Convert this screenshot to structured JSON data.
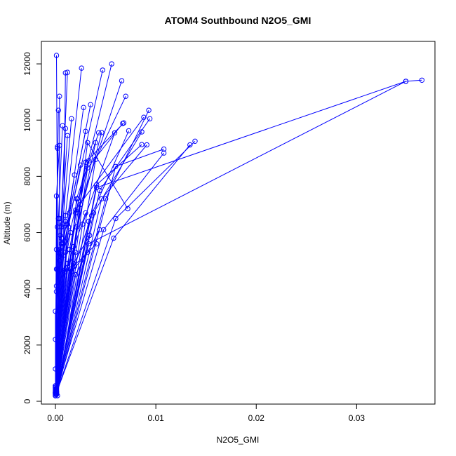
{
  "chart_data": {
    "type": "line",
    "title": "ATOM4 Southbound N2O5_GMI",
    "xlabel": "N2O5_GMI",
    "ylabel": "Altitude (m)",
    "xlim": [
      -0.0014,
      0.0378
    ],
    "ylim": [
      -100,
      12800
    ],
    "x_ticks": [
      0.0,
      0.01,
      0.02,
      0.03
    ],
    "x_tick_labels": [
      "0.00",
      "0.01",
      "0.02",
      "0.03"
    ],
    "y_ticks": [
      0,
      2000,
      4000,
      6000,
      8000,
      10000,
      12000
    ],
    "y_tick_labels": [
      "0",
      "2000",
      "4000",
      "6000",
      "8000",
      "10000",
      "12000"
    ],
    "grid": false,
    "marker": "open-circle",
    "color": "#0000ff",
    "series": [
      {
        "x": [
          0.0,
          0.0002,
          0.0001
        ],
        "y": [
          200,
          6200,
          12300
        ]
      },
      {
        "x": [
          0.0,
          0.0001,
          0.0003
        ],
        "y": [
          300,
          5400,
          10350
        ]
      },
      {
        "x": [
          0.0001,
          0.0004,
          0.0004
        ],
        "y": [
          250,
          6500,
          10850
        ]
      },
      {
        "x": [
          0.0,
          0.0005,
          0.0012
        ],
        "y": [
          400,
          5900,
          11700
        ]
      },
      {
        "x": [
          0.0,
          0.0008,
          0.001
        ],
        "y": [
          350,
          5600,
          11680
        ]
      },
      {
        "x": [
          0.0001,
          0.001,
          0.0026
        ],
        "y": [
          300,
          6600,
          11850
        ]
      },
      {
        "x": [
          0.0,
          0.0009,
          0.0047
        ],
        "y": [
          250,
          5700,
          11780
        ]
      },
      {
        "x": [
          0.0001,
          0.002,
          0.0056
        ],
        "y": [
          300,
          6700,
          12000
        ]
      },
      {
        "x": [
          0.0001,
          0.0025,
          0.0066
        ],
        "y": [
          350,
          7000,
          11400
        ]
      },
      {
        "x": [
          0.0002,
          0.004,
          0.007
        ],
        "y": [
          200,
          8600,
          10850
        ]
      },
      {
        "x": [
          0.0001,
          0.0008,
          0.0028
        ],
        "y": [
          400,
          5200,
          10450
        ]
      },
      {
        "x": [
          0.0001,
          0.0012,
          0.0035
        ],
        "y": [
          450,
          6300,
          10550
        ]
      },
      {
        "x": [
          0.0,
          0.0006,
          0.0016
        ],
        "y": [
          500,
          5800,
          10050
        ]
      },
      {
        "x": [
          0.0001,
          0.003,
          0.0068
        ],
        "y": [
          300,
          8500,
          9900
        ]
      },
      {
        "x": [
          0.0001,
          0.0032,
          0.0067
        ],
        "y": [
          250,
          8300,
          9880
        ]
      },
      {
        "x": [
          0.0001,
          0.005,
          0.0093
        ],
        "y": [
          350,
          7200,
          10350
        ]
      },
      {
        "x": [
          0.0,
          0.002,
          0.0088
        ],
        "y": [
          300,
          6800,
          10100
        ]
      },
      {
        "x": [
          0.0001,
          0.0044,
          0.0094
        ],
        "y": [
          400,
          7500,
          10050
        ]
      },
      {
        "x": [
          0.0001,
          0.0033,
          0.0073
        ],
        "y": [
          300,
          6400,
          9620
        ]
      },
      {
        "x": [
          0.0001,
          0.0027,
          0.0059
        ],
        "y": [
          450,
          6300,
          9550
        ]
      },
      {
        "x": [
          0.0001,
          0.0038,
          0.0086
        ],
        "y": [
          350,
          6700,
          9580
        ]
      },
      {
        "x": [
          0.0,
          0.0021,
          0.0046
        ],
        "y": [
          300,
          6200,
          9560
        ]
      },
      {
        "x": [
          0.0001,
          0.0046,
          0.0091
        ],
        "y": [
          250,
          7200,
          9120
        ]
      },
      {
        "x": [
          0.0001,
          0.0041,
          0.0086
        ],
        "y": [
          300,
          7700,
          9130
        ]
      },
      {
        "x": [
          0.0001,
          0.006,
          0.0108
        ],
        "y": [
          250,
          8350,
          8970
        ]
      },
      {
        "x": [
          0.0001,
          0.006,
          0.0139
        ],
        "y": [
          300,
          6500,
          9250
        ]
      },
      {
        "x": [
          0.0001,
          0.0048,
          0.0108
        ],
        "y": [
          350,
          6100,
          8830
        ]
      },
      {
        "x": [
          0.0001,
          0.0058,
          0.0134
        ],
        "y": [
          300,
          5800,
          9120
        ]
      },
      {
        "x": [
          0.0001,
          0.0033,
          0.0349,
          0.0365
        ],
        "y": [
          250,
          5600,
          11380,
          11420
        ]
      },
      {
        "x": [
          0.0001,
          0.0041,
          0.0349
        ],
        "y": [
          300,
          7600,
          11380
        ]
      },
      {
        "x": [
          0.0001,
          0.0032,
          0.0072
        ],
        "y": [
          350,
          9200,
          6850
        ]
      },
      {
        "x": [
          0.0001,
          0.0021,
          0.0043
        ],
        "y": [
          300,
          7200,
          9550
        ]
      },
      {
        "x": [
          0.0,
          0.0014,
          0.003
        ],
        "y": [
          400,
          6700,
          9600
        ]
      },
      {
        "x": [
          0.0001,
          0.0013,
          0.0025
        ],
        "y": [
          300,
          6200,
          8400
        ]
      },
      {
        "x": [
          0.0001,
          0.0014,
          0.003
        ],
        "y": [
          250,
          5400,
          8500
        ]
      },
      {
        "x": [
          0.0,
          0.0018,
          0.004
        ],
        "y": [
          300,
          5500,
          9200
        ]
      },
      {
        "x": [
          0.0001,
          0.0012,
          0.0033
        ],
        "y": [
          350,
          4900,
          8550
        ]
      },
      {
        "x": [
          0.0,
          0.0007,
          0.0019
        ],
        "y": [
          250,
          5500,
          8050
        ]
      },
      {
        "x": [
          0.0,
          0.0006,
          0.0012
        ],
        "y": [
          200,
          6200,
          9450
        ]
      },
      {
        "x": [
          0.0,
          0.0004,
          0.001
        ],
        "y": [
          300,
          5000,
          9700
        ]
      },
      {
        "x": [
          0.0,
          0.0003,
          0.0007
        ],
        "y": [
          450,
          6500,
          9800
        ]
      },
      {
        "x": [
          0.0,
          0.0002,
          0.0002
        ],
        "y": [
          500,
          9000,
          9050
        ]
      },
      {
        "x": [
          0.0,
          0.0001,
          0.0004
        ],
        "y": [
          550,
          7300,
          9100
        ]
      },
      {
        "x": [
          0.0,
          0.001,
          0.0022
        ],
        "y": [
          300,
          5300,
          7200
        ]
      },
      {
        "x": [
          0.0001,
          0.0015,
          0.0041
        ],
        "y": [
          350,
          4700,
          5600
        ]
      },
      {
        "x": [
          0.0001,
          0.002,
          0.0044
        ],
        "y": [
          300,
          4500,
          6100
        ]
      },
      {
        "x": [
          0.0001,
          0.0019,
          0.0036
        ],
        "y": [
          250,
          4800,
          6600
        ]
      },
      {
        "x": [
          0.0,
          0.0016,
          0.0032
        ],
        "y": [
          300,
          4600,
          5300
        ]
      },
      {
        "x": [
          0.0001,
          0.0018,
          0.0034
        ],
        "y": [
          400,
          4900,
          5900
        ]
      },
      {
        "x": [
          0.0,
          0.0009,
          0.002
        ],
        "y": [
          350,
          4600,
          5300
        ]
      },
      {
        "x": [
          0.0,
          0.0011,
          0.003
        ],
        "y": [
          300,
          4700,
          6700
        ]
      },
      {
        "x": [
          0.0,
          0.0008,
          0.0015
        ],
        "y": [
          250,
          4650,
          6000
        ]
      },
      {
        "x": [
          0.0,
          0.0006,
          0.001
        ],
        "y": [
          300,
          5200,
          6400
        ]
      },
      {
        "x": [
          0.0,
          0.0004,
          0.0007
        ],
        "y": [
          350,
          5000,
          6300
        ]
      },
      {
        "x": [
          0.0,
          0.0003,
          0.0006
        ],
        "y": [
          300,
          5300,
          5600
        ]
      },
      {
        "x": [
          0.0,
          0.0002,
          0.0004
        ],
        "y": [
          450,
          4700,
          5400
        ]
      },
      {
        "x": [
          0.0,
          0.0,
          0.0001
        ],
        "y": [
          500,
          2200,
          3900
        ]
      },
      {
        "x": [
          0.0,
          0.0,
          0.0
        ],
        "y": [
          550,
          1150,
          3200
        ]
      },
      {
        "x": [
          0.0,
          0.0001,
          0.0001
        ],
        "y": [
          200,
          4100,
          4700
        ]
      }
    ]
  }
}
